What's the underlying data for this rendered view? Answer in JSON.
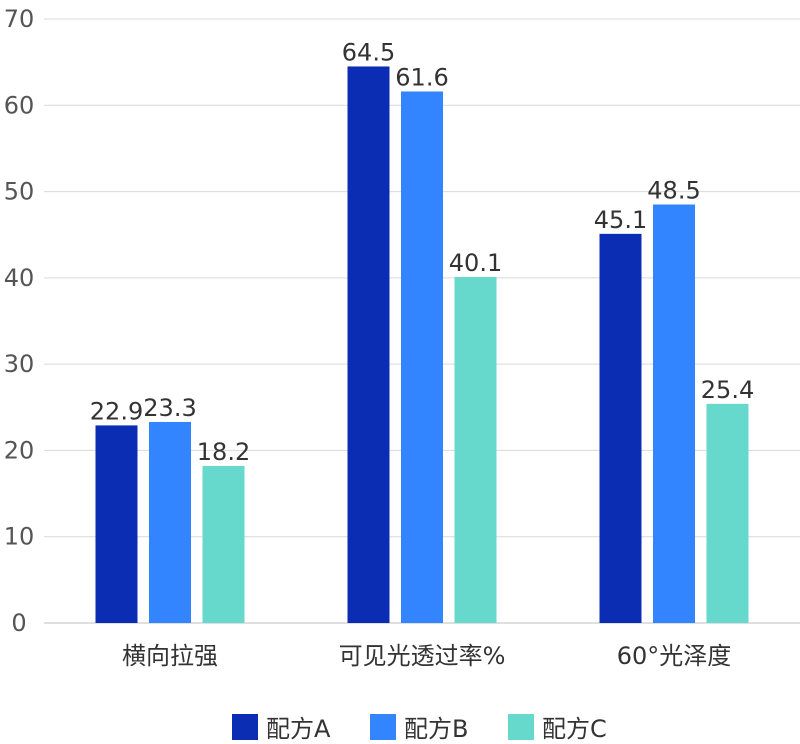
{
  "chart_data": {
    "type": "bar",
    "categories": [
      "横向拉强",
      "可见光透过率%",
      "60°光泽度"
    ],
    "series": [
      {
        "name": "配方A",
        "color": "#0A2DB3",
        "values": [
          22.9,
          64.5,
          45.1
        ]
      },
      {
        "name": "配方B",
        "color": "#3385FF",
        "values": [
          23.3,
          61.6,
          48.5
        ]
      },
      {
        "name": "配方C",
        "color": "#66D8CC",
        "values": [
          18.2,
          40.1,
          25.4
        ]
      }
    ],
    "data_labels": [
      [
        "22.9",
        "64.5",
        "45.1"
      ],
      [
        "23.3",
        "61.6",
        "48.5"
      ],
      [
        "18.2",
        "40.1",
        "25.4"
      ]
    ],
    "ylim": [
      0,
      70
    ],
    "yticks": [
      "0",
      "10",
      "20",
      "30",
      "40",
      "50",
      "60",
      "70"
    ],
    "grid": true,
    "legend_position": "bottom"
  }
}
